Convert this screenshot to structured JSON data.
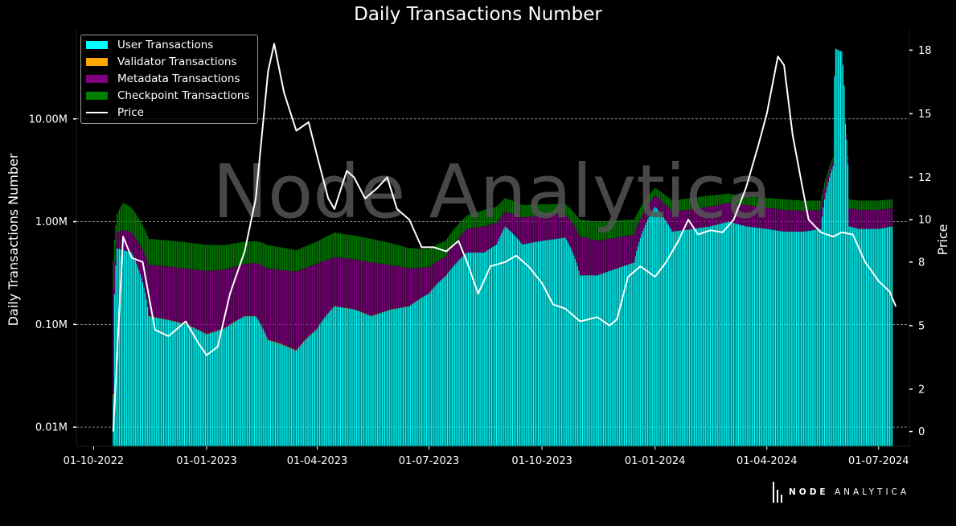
{
  "chart_data": {
    "type": "bar",
    "title": "Daily Transactions Number",
    "ylabel_left": "Daily Transactions Number",
    "ylabel_right": "Price",
    "watermark": "Node Analytica",
    "brand": {
      "bold": "NODE",
      "light": "ANALYTICA"
    },
    "y_left_scale": "log",
    "y_left_lim": [
      0.0065,
      75
    ],
    "y_left_ticks": [
      0.01,
      0.1,
      1.0,
      10.0
    ],
    "y_left_tick_labels": [
      "0.01M",
      "0.10M",
      "1.00M",
      "10.00M"
    ],
    "y_right_lim": [
      -0.7,
      19
    ],
    "y_right_ticks": [
      0,
      2,
      5,
      8,
      10,
      12,
      15,
      18
    ],
    "y_right_tick_labels": [
      "0",
      "2",
      "5",
      "8",
      "10",
      "12",
      "15",
      "18"
    ],
    "x_ticks": [
      "2022-10-01",
      "2023-01-01",
      "2023-04-01",
      "2023-07-01",
      "2023-10-01",
      "2024-01-01",
      "2024-04-01",
      "2024-07-01"
    ],
    "x_tick_labels": [
      "01-10-2022",
      "01-01-2023",
      "01-04-2023",
      "01-07-2023",
      "01-10-2023",
      "01-01-2024",
      "01-04-2024",
      "01-07-2024"
    ],
    "x_lim": [
      "2022-09-17",
      "2024-07-26"
    ],
    "grid": "horizontal dashed",
    "legend_position": "top-left",
    "series": [
      {
        "name": "User Transactions",
        "color": "#00ffff",
        "kind": "stacked-bar",
        "unit": "M",
        "points": [
          [
            "2022-10-17",
            0.02
          ],
          [
            "2022-10-20",
            0.55
          ],
          [
            "2022-11-01",
            0.5
          ],
          [
            "2022-11-15",
            0.12
          ],
          [
            "2022-12-01",
            0.11
          ],
          [
            "2022-12-15",
            0.1
          ],
          [
            "2023-01-01",
            0.08
          ],
          [
            "2023-01-15",
            0.09
          ],
          [
            "2023-02-01",
            0.12
          ],
          [
            "2023-02-10",
            0.12
          ],
          [
            "2023-02-20",
            0.07
          ],
          [
            "2023-03-01",
            0.065
          ],
          [
            "2023-03-15",
            0.055
          ],
          [
            "2023-04-01",
            0.09
          ],
          [
            "2023-04-15",
            0.15
          ],
          [
            "2023-05-01",
            0.14
          ],
          [
            "2023-05-15",
            0.12
          ],
          [
            "2023-06-01",
            0.14
          ],
          [
            "2023-06-15",
            0.15
          ],
          [
            "2023-07-01",
            0.2
          ],
          [
            "2023-07-15",
            0.3
          ],
          [
            "2023-08-01",
            0.5
          ],
          [
            "2023-08-15",
            0.5
          ],
          [
            "2023-08-25",
            0.6
          ],
          [
            "2023-09-01",
            0.9
          ],
          [
            "2023-09-15",
            0.6
          ],
          [
            "2023-10-01",
            0.65
          ],
          [
            "2023-10-20",
            0.7
          ],
          [
            "2023-11-01",
            0.3
          ],
          [
            "2023-11-15",
            0.3
          ],
          [
            "2023-12-01",
            0.35
          ],
          [
            "2023-12-15",
            0.4
          ],
          [
            "2024-01-01",
            1.4
          ],
          [
            "2024-01-15",
            0.8
          ],
          [
            "2024-02-01",
            0.85
          ],
          [
            "2024-02-15",
            0.9
          ],
          [
            "2024-03-01",
            1.0
          ],
          [
            "2024-03-15",
            0.9
          ],
          [
            "2024-04-01",
            0.85
          ],
          [
            "2024-04-15",
            0.8
          ],
          [
            "2024-05-01",
            0.8
          ],
          [
            "2024-05-15",
            0.85
          ],
          [
            "2024-05-25",
            3.5
          ],
          [
            "2024-05-27",
            48
          ],
          [
            "2024-06-01",
            45
          ],
          [
            "2024-06-04",
            9
          ],
          [
            "2024-06-07",
            0.9
          ],
          [
            "2024-06-15",
            0.85
          ],
          [
            "2024-07-01",
            0.85
          ],
          [
            "2024-07-12",
            0.9
          ]
        ]
      },
      {
        "name": "Validator Transactions",
        "color": "#ffa500",
        "kind": "stacked-bar",
        "unit": "M",
        "points": [
          [
            "2022-10-17",
            0.001
          ],
          [
            "2024-07-12",
            0.001
          ]
        ]
      },
      {
        "name": "Metadata Transactions",
        "color": "#800080",
        "kind": "stacked-bar",
        "unit": "M",
        "points": [
          [
            "2022-10-17",
            0.2
          ],
          [
            "2022-10-25",
            0.3
          ],
          [
            "2022-11-15",
            0.26
          ],
          [
            "2022-12-15",
            0.25
          ],
          [
            "2023-01-15",
            0.25
          ],
          [
            "2023-02-15",
            0.28
          ],
          [
            "2023-03-15",
            0.27
          ],
          [
            "2023-04-01",
            0.3
          ],
          [
            "2023-04-15",
            0.3
          ],
          [
            "2023-05-15",
            0.28
          ],
          [
            "2023-06-15",
            0.2
          ],
          [
            "2023-07-01",
            0.16
          ],
          [
            "2023-07-15",
            0.16
          ],
          [
            "2023-08-01",
            0.35
          ],
          [
            "2023-08-15",
            0.4
          ],
          [
            "2023-09-01",
            0.35
          ],
          [
            "2023-09-15",
            0.5
          ],
          [
            "2023-10-15",
            0.5
          ],
          [
            "2023-11-15",
            0.35
          ],
          [
            "2023-12-15",
            0.35
          ],
          [
            "2024-01-15",
            0.45
          ],
          [
            "2024-02-15",
            0.5
          ],
          [
            "2024-03-15",
            0.55
          ],
          [
            "2024-04-15",
            0.5
          ],
          [
            "2024-05-15",
            0.45
          ],
          [
            "2024-06-15",
            0.45
          ],
          [
            "2024-07-12",
            0.45
          ]
        ]
      },
      {
        "name": "Checkpoint Transactions",
        "color": "#008000",
        "kind": "stacked-bar",
        "unit": "M",
        "points": [
          [
            "2022-10-17",
            0.2
          ],
          [
            "2022-10-25",
            0.7
          ],
          [
            "2022-11-15",
            0.3
          ],
          [
            "2022-12-15",
            0.28
          ],
          [
            "2023-01-15",
            0.25
          ],
          [
            "2023-02-15",
            0.25
          ],
          [
            "2023-03-15",
            0.2
          ],
          [
            "2023-04-01",
            0.25
          ],
          [
            "2023-04-15",
            0.33
          ],
          [
            "2023-05-15",
            0.28
          ],
          [
            "2023-06-15",
            0.2
          ],
          [
            "2023-07-01",
            0.18
          ],
          [
            "2023-07-15",
            0.2
          ],
          [
            "2023-08-01",
            0.3
          ],
          [
            "2023-08-15",
            0.4
          ],
          [
            "2023-09-01",
            0.45
          ],
          [
            "2023-09-15",
            0.35
          ],
          [
            "2023-10-15",
            0.3
          ],
          [
            "2023-11-15",
            0.35
          ],
          [
            "2023-12-15",
            0.3
          ],
          [
            "2024-01-15",
            0.35
          ],
          [
            "2024-02-15",
            0.4
          ],
          [
            "2024-03-15",
            0.3
          ],
          [
            "2024-04-15",
            0.35
          ],
          [
            "2024-05-15",
            0.3
          ],
          [
            "2024-06-15",
            0.3
          ],
          [
            "2024-07-12",
            0.3
          ]
        ]
      },
      {
        "name": "Price",
        "color": "#ffffff",
        "kind": "line",
        "axis": "right",
        "points": [
          [
            "2022-10-17",
            0
          ],
          [
            "2022-10-25",
            9.2
          ],
          [
            "2022-11-01",
            8.2
          ],
          [
            "2022-11-10",
            8
          ],
          [
            "2022-11-20",
            4.8
          ],
          [
            "2022-12-01",
            4.5
          ],
          [
            "2022-12-15",
            5.2
          ],
          [
            "2022-12-25",
            4.2
          ],
          [
            "2023-01-01",
            3.6
          ],
          [
            "2023-01-10",
            4
          ],
          [
            "2023-01-20",
            6.5
          ],
          [
            "2023-02-01",
            8.5
          ],
          [
            "2023-02-10",
            11
          ],
          [
            "2023-02-20",
            17
          ],
          [
            "2023-02-25",
            18.3
          ],
          [
            "2023-03-05",
            16
          ],
          [
            "2023-03-15",
            14.2
          ],
          [
            "2023-03-25",
            14.6
          ],
          [
            "2023-04-01",
            13
          ],
          [
            "2023-04-10",
            11
          ],
          [
            "2023-04-15",
            10.5
          ],
          [
            "2023-04-25",
            12.3
          ],
          [
            "2023-05-01",
            12
          ],
          [
            "2023-05-10",
            11
          ],
          [
            "2023-05-20",
            11.5
          ],
          [
            "2023-05-28",
            12
          ],
          [
            "2023-06-05",
            10.5
          ],
          [
            "2023-06-15",
            10
          ],
          [
            "2023-06-25",
            8.7
          ],
          [
            "2023-07-05",
            8.7
          ],
          [
            "2023-07-15",
            8.5
          ],
          [
            "2023-07-25",
            9
          ],
          [
            "2023-08-01",
            8
          ],
          [
            "2023-08-10",
            6.5
          ],
          [
            "2023-08-20",
            7.8
          ],
          [
            "2023-09-01",
            8
          ],
          [
            "2023-09-10",
            8.3
          ],
          [
            "2023-09-20",
            7.8
          ],
          [
            "2023-10-01",
            7
          ],
          [
            "2023-10-10",
            6
          ],
          [
            "2023-10-20",
            5.8
          ],
          [
            "2023-11-01",
            5.2
          ],
          [
            "2023-11-15",
            5.4
          ],
          [
            "2023-11-25",
            5
          ],
          [
            "2023-12-01",
            5.3
          ],
          [
            "2023-12-10",
            7.3
          ],
          [
            "2023-12-20",
            7.8
          ],
          [
            "2024-01-01",
            7.3
          ],
          [
            "2024-01-10",
            8
          ],
          [
            "2024-01-20",
            9
          ],
          [
            "2024-01-28",
            10
          ],
          [
            "2024-02-05",
            9.3
          ],
          [
            "2024-02-15",
            9.5
          ],
          [
            "2024-02-25",
            9.4
          ],
          [
            "2024-03-05",
            10
          ],
          [
            "2024-03-15",
            11.5
          ],
          [
            "2024-03-25",
            13.5
          ],
          [
            "2024-04-01",
            15
          ],
          [
            "2024-04-10",
            17.7
          ],
          [
            "2024-04-15",
            17.3
          ],
          [
            "2024-04-22",
            14
          ],
          [
            "2024-04-30",
            11.5
          ],
          [
            "2024-05-05",
            10
          ],
          [
            "2024-05-15",
            9.4
          ],
          [
            "2024-05-25",
            9.2
          ],
          [
            "2024-06-01",
            9.4
          ],
          [
            "2024-06-10",
            9.3
          ],
          [
            "2024-06-20",
            8
          ],
          [
            "2024-07-01",
            7.1
          ],
          [
            "2024-07-10",
            6.6
          ],
          [
            "2024-07-15",
            5.9
          ]
        ]
      }
    ]
  }
}
